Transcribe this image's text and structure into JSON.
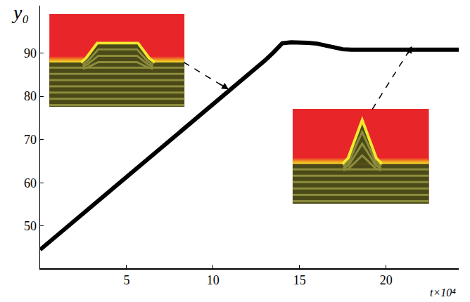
{
  "chart_data": {
    "type": "line",
    "xlabel": "t×10⁴",
    "ylabel": "y₀",
    "x": [
      0,
      2,
      4,
      6,
      8,
      10,
      12,
      13,
      13.5,
      14,
      14.5,
      15,
      15.5,
      16,
      16.5,
      17,
      17.5,
      18,
      20,
      22,
      24.2
    ],
    "values": [
      44.5,
      51.2,
      57.9,
      64.6,
      71.3,
      78.0,
      84.8,
      88.3,
      90.2,
      92.3,
      92.5,
      92.5,
      92.4,
      92.2,
      91.8,
      91.2,
      90.9,
      90.8,
      90.8,
      90.8,
      90.8
    ],
    "color": "#000000",
    "xlim": [
      0,
      24.2
    ],
    "xticks": [
      5,
      10,
      15,
      20
    ],
    "ylim": [
      40.2,
      101
    ],
    "yticks": [
      50,
      60,
      70,
      80,
      90
    ],
    "grid": false
  }
}
